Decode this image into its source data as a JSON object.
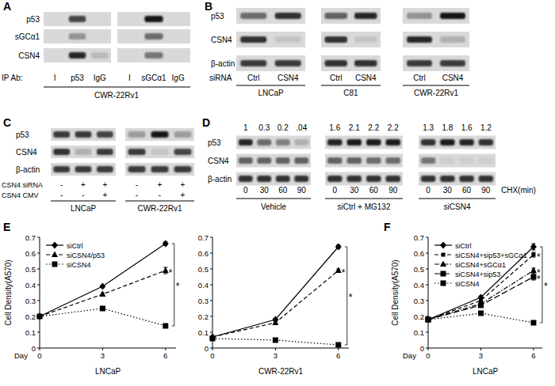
{
  "panel_labels": [
    "A",
    "B",
    "C",
    "D",
    "E",
    "F"
  ],
  "blots": {
    "A": {
      "rows": [
        "p53",
        "sGCα1",
        "CSN4"
      ],
      "lane_title": "IP Ab:",
      "cell_line": "CWR-22Rv1",
      "groups": [
        {
          "lanes": [
            "I",
            "p53",
            "IgG"
          ],
          "bands": [
            [
              0,
              0.75,
              0
            ],
            [
              0,
              0.35,
              0
            ],
            [
              0,
              0.9,
              0.15
            ]
          ]
        },
        {
          "lanes": [
            "I",
            "sGCα1",
            "IgG"
          ],
          "bands": [
            [
              0,
              1,
              0
            ],
            [
              0,
              0.55,
              0
            ],
            [
              0,
              0.5,
              0
            ]
          ]
        }
      ]
    },
    "B": {
      "rows": [
        "p53",
        "CSN4",
        "β-actin"
      ],
      "lane_title": "siRNA",
      "groups": [
        {
          "name": "LNCaP",
          "lanes": [
            "Ctrl",
            "CSN4"
          ],
          "bands": [
            [
              0.55,
              0.85
            ],
            [
              0.85,
              0.1
            ],
            [
              0.8,
              0.8
            ]
          ]
        },
        {
          "name": "C81",
          "lanes": [
            "Ctrl",
            "CSN4"
          ],
          "bands": [
            [
              0.6,
              0.9
            ],
            [
              0.85,
              0.1
            ],
            [
              0.85,
              0.85
            ]
          ]
        },
        {
          "name": "CWR-22Rv1",
          "lanes": [
            "Ctrl",
            "CSN4"
          ],
          "bands": [
            [
              0.35,
              1
            ],
            [
              0.9,
              0.2
            ],
            [
              0.8,
              0.8
            ]
          ]
        }
      ]
    },
    "C": {
      "rows": [
        "p53",
        "CSN4",
        "β-actin"
      ],
      "conditions": [
        "CSN4 siRNA",
        "CSN4 CMV"
      ],
      "groups": [
        {
          "name": "LNCaP",
          "signs": [
            [
              "-",
              "+",
              "+"
            ],
            [
              "-",
              "-",
              "+"
            ]
          ],
          "bands": [
            [
              0.8,
              0.8,
              0.75
            ],
            [
              0.85,
              0.2,
              0.8
            ],
            [
              0.8,
              0.8,
              0.8
            ]
          ]
        },
        {
          "name": "CWR-22Rv1",
          "signs": [
            [
              "-",
              "+",
              "+"
            ],
            [
              "-",
              "-",
              "+"
            ]
          ],
          "bands": [
            [
              0.3,
              1,
              0.3
            ],
            [
              0.8,
              0.1,
              0.75
            ],
            [
              0.8,
              0.8,
              0.8
            ]
          ]
        }
      ]
    },
    "D": {
      "rows": [
        "p53",
        "CSN4",
        "β-actin"
      ],
      "lane_title": "CHX(min)",
      "groups": [
        {
          "name": "Vehicle",
          "lanes": [
            0,
            30,
            60,
            90
          ],
          "values": [
            1,
            0.3,
            0.2,
            0.04
          ],
          "value_labels": [
            "1",
            "0.3",
            "0.2",
            ".04"
          ],
          "bands": [
            [
              0.9,
              0.55,
              0.45,
              0.2
            ],
            [
              0.6,
              0.6,
              0.6,
              0.6
            ],
            [
              0.85,
              0.85,
              0.85,
              0.85
            ]
          ]
        },
        {
          "name": "siCtrl + MG132",
          "lanes": [
            0,
            30,
            60,
            90
          ],
          "values": [
            1.6,
            2.1,
            2.2,
            2.2
          ],
          "value_labels": [
            "1.6",
            "2.1",
            "2.2",
            "2.2"
          ],
          "bands": [
            [
              0.9,
              0.95,
              0.95,
              0.95
            ],
            [
              0.6,
              0.6,
              0.55,
              0.55
            ],
            [
              0.85,
              0.85,
              0.85,
              0.85
            ]
          ]
        },
        {
          "name": "siCSN4",
          "lanes": [
            0,
            30,
            60,
            90
          ],
          "values": [
            1.3,
            1.8,
            1.6,
            1.2
          ],
          "value_labels": [
            "1.3",
            "1.8",
            "1.6",
            "1.2"
          ],
          "bands": [
            [
              0.85,
              0.95,
              0.9,
              0.85
            ],
            [
              0.5,
              0.05,
              0.05,
              0.05
            ],
            [
              0.85,
              0.85,
              0.85,
              0.85
            ]
          ]
        }
      ]
    }
  },
  "chart_data": [
    {
      "type": "line",
      "title": "LNCaP",
      "x_label": "Day",
      "y_label": "Cell Density(A570)",
      "x": [
        0,
        3,
        6
      ],
      "xlim": [
        0,
        6.5
      ],
      "xticks": [
        0,
        3,
        6
      ],
      "ylim": [
        0,
        0.7
      ],
      "yticks": [
        0,
        0.1,
        0.2,
        0.3,
        0.4,
        0.5,
        0.6,
        0.7
      ],
      "legend": "upper left",
      "series": [
        {
          "name": "siCtrl",
          "color": "#000000",
          "marker": "diamond",
          "line_style": "solid",
          "values": [
            0.2,
            0.39,
            0.66
          ],
          "errors": [
            0.005,
            0.008,
            0.012
          ]
        },
        {
          "name": "siCSN4/p53",
          "color": "#000000",
          "marker": "triangle",
          "line_style": "dashed",
          "values": [
            0.2,
            0.34,
            0.49
          ],
          "errors": [
            0.005,
            0.01,
            0.02
          ]
        },
        {
          "name": "siCSN4",
          "color": "#000000",
          "marker": "square",
          "line_style": "dotted",
          "values": [
            0.2,
            0.25,
            0.14
          ],
          "errors": [
            0.005,
            0.01,
            0.01
          ]
        }
      ],
      "annotations": [
        {
          "text": "*",
          "x": 6,
          "y": 0.49
        },
        {
          "text": "*",
          "x": 6,
          "y_range": [
            0.66,
            0.14
          ]
        }
      ]
    },
    {
      "type": "line",
      "title": "CWR-22Rv1",
      "x": [
        0,
        3,
        6
      ],
      "xlim": [
        0,
        6.5
      ],
      "xticks": [
        0,
        3,
        6
      ],
      "ylim": [
        0,
        0.7
      ],
      "yticks": [
        0,
        0.1,
        0.2,
        0.3,
        0.4,
        0.5,
        0.6,
        0.7
      ],
      "series": [
        {
          "color": "#000000",
          "marker": "diamond",
          "line_style": "solid",
          "values": [
            0.07,
            0.18,
            0.64
          ],
          "errors": [
            0.005,
            0.008,
            0.012
          ]
        },
        {
          "color": "#000000",
          "marker": "triangle",
          "line_style": "dashed",
          "values": [
            0.07,
            0.16,
            0.49
          ],
          "errors": [
            0.005,
            0.008,
            0.01
          ]
        },
        {
          "color": "#000000",
          "marker": "square",
          "line_style": "dotted",
          "values": [
            0.06,
            0.05,
            0.02
          ],
          "errors": [
            0.005,
            0.005,
            0.005
          ]
        }
      ],
      "annotations": [
        {
          "text": "*",
          "x": 6,
          "y": 0.49
        },
        {
          "text": "*",
          "x": 6,
          "y_range": [
            0.64,
            0.02
          ]
        }
      ]
    },
    {
      "type": "line",
      "title": "LNCaP",
      "x_label": "Day",
      "y_label": "Cell Density(A570)",
      "x": [
        0,
        3,
        6
      ],
      "xlim": [
        0,
        6.5
      ],
      "xticks": [
        0,
        3,
        6
      ],
      "ylim": [
        0,
        0.7
      ],
      "yticks": [
        0,
        0.1,
        0.2,
        0.3,
        0.4,
        0.5,
        0.6,
        0.7
      ],
      "legend": "upper left",
      "series": [
        {
          "name": "siCtrl",
          "color": "#000000",
          "marker": "diamond",
          "line_style": "solid",
          "values": [
            0.18,
            0.32,
            0.64
          ],
          "errors": [
            0.005,
            0.01,
            0.02
          ]
        },
        {
          "name": "siCSN4+sip53+sGCα1",
          "color": "#000000",
          "marker": "square_small",
          "line_style": "dashed",
          "values": [
            0.18,
            0.3,
            0.59
          ],
          "errors": [
            0.005,
            0.01,
            0.015
          ]
        },
        {
          "name": "siCSN4+sGCα1",
          "color": "#000000",
          "marker": "triangle",
          "line_style": "dashdot",
          "values": [
            0.18,
            0.28,
            0.49
          ],
          "errors": [
            0.005,
            0.01,
            0.015
          ]
        },
        {
          "name": "siCSN4+sip53",
          "color": "#000000",
          "marker": "square",
          "line_style": "longdash",
          "values": [
            0.18,
            0.27,
            0.45
          ],
          "errors": [
            0.005,
            0.01,
            0.02
          ]
        },
        {
          "name": "siCSN4",
          "color": "#000000",
          "marker": "square",
          "line_style": "dotted",
          "values": [
            0.18,
            0.22,
            0.16
          ],
          "errors": [
            0.005,
            0.01,
            0.005
          ]
        }
      ],
      "annotations": [
        {
          "text": "*",
          "x": 6,
          "y": 0.59
        },
        {
          "text": "*",
          "x": 6,
          "y": 0.49
        },
        {
          "text": "*",
          "x": 6,
          "y": 0.45
        },
        {
          "text": "*",
          "x": 6,
          "y_range": [
            0.64,
            0.16
          ]
        }
      ]
    }
  ]
}
